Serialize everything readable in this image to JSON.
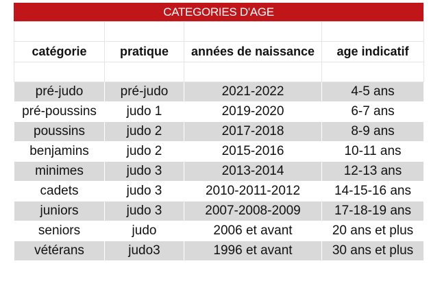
{
  "title": "CATEGORIES D'AGE",
  "table": {
    "header": [
      "catégorie",
      "pratique",
      "années de naissance",
      "age indicatif"
    ],
    "rows": [
      [
        "pré-judo",
        "pré-judo",
        "2021-2022",
        "4-5 ans"
      ],
      [
        "pré-poussins",
        "judo 1",
        "2019-2020",
        "6-7 ans"
      ],
      [
        "poussins",
        "judo 2",
        "2017-2018",
        "8-9 ans"
      ],
      [
        "benjamins",
        "judo 2",
        "2015-2016",
        "10-11 ans"
      ],
      [
        "minimes",
        "judo 3",
        "2013-2014",
        "12-13 ans"
      ],
      [
        "cadets",
        "judo 3",
        "2010-2011-2012",
        "14-15-16 ans"
      ],
      [
        "juniors",
        "judo 3",
        "2007-2008-2009",
        "17-18-19 ans"
      ],
      [
        "seniors",
        "judo",
        "2006 et avant",
        "20 ans et plus"
      ],
      [
        "vétérans",
        "judo3",
        "1996 et avant",
        "30 ans et plus"
      ]
    ]
  }
}
